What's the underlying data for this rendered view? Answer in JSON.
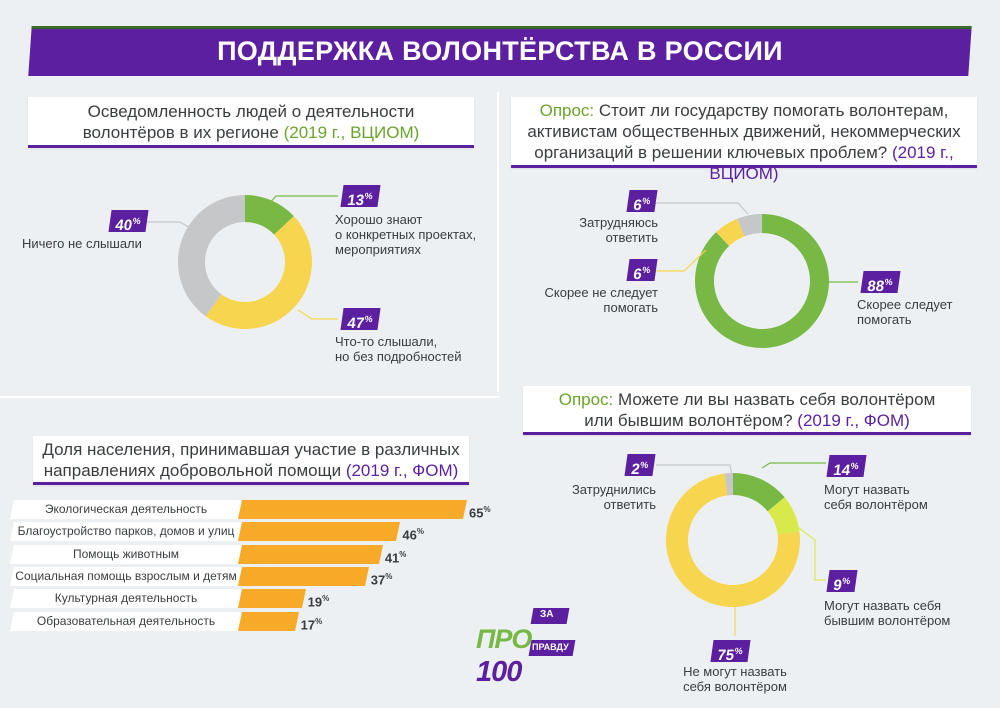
{
  "title": "ПОДДЕРЖКА ВОЛОНТЁРСТВА В РОССИИ",
  "colors": {
    "purple": "#5b1fa0",
    "green": "#78b845",
    "yellow": "#f7d54e",
    "gray": "#c5c7c9",
    "lime": "#d7ea4a",
    "orange": "#f7a928"
  },
  "awareness": {
    "title_line1": "Осведомленность людей о деятельности",
    "title_line2": "волонтёров в их регионе",
    "source": "(2019 г., ВЦИОМ)",
    "chart_data": {
      "type": "pie",
      "title": "Осведомленность людей о деятельности волонтёров в их регионе",
      "slices": [
        {
          "label_line1": "Хорошо знают",
          "label_line2": "о конкретных проектах,",
          "label_line3": "мероприятиях",
          "value": 13,
          "pct": "13",
          "color": "#78b845"
        },
        {
          "label_line1": "Что-то слышали,",
          "label_line2": "но без подробностей",
          "value": 47,
          "pct": "47",
          "color": "#f7d54e"
        },
        {
          "label_line1": "Ничего не слышали",
          "value": 40,
          "pct": "40",
          "color": "#c5c7c9"
        }
      ]
    }
  },
  "poll1": {
    "prefix": "Опрос:",
    "line1": "Стоит ли государству помогать волонтерам,",
    "line2": "активистам общественных движений, некоммерческих",
    "line3": "организаций в решении ключевых проблем?",
    "source": "(2019 г., ВЦИОМ)",
    "chart_data": {
      "type": "pie",
      "title": "Стоит ли государству помогать волонтерам",
      "slices": [
        {
          "label_line1": "Скорее следует",
          "label_line2": "помогать",
          "value": 88,
          "pct": "88",
          "color": "#78b845"
        },
        {
          "label_line1": "Скорее не следует",
          "label_line2": "помогать",
          "value": 6,
          "pct": "6",
          "color": "#f7d54e"
        },
        {
          "label_line1": "Затрудняюсь",
          "label_line2": "ответить",
          "value": 6,
          "pct": "6",
          "color": "#c5c7c9"
        }
      ]
    }
  },
  "poll2": {
    "prefix": "Опрос:",
    "line1": "Можете ли вы назвать себя волонтёром",
    "line2": "или бывшим волонтёром?",
    "source": "(2019 г., ФОМ)",
    "chart_data": {
      "type": "pie",
      "title": "Можете ли вы назвать себя волонтёром или бывшим волонтёром?",
      "slices": [
        {
          "label_line1": "Могут назвать",
          "label_line2": "себя волонтёром",
          "value": 14,
          "pct": "14",
          "color": "#78b845"
        },
        {
          "label_line1": "Могут назвать себя",
          "label_line2": "бывшим волонтёром",
          "value": 9,
          "pct": "9",
          "color": "#d7ea4a"
        },
        {
          "label_line1": "Не могут назвать",
          "label_line2": "себя волонтёром",
          "value": 75,
          "pct": "75",
          "color": "#f7d54e"
        },
        {
          "label_line1": "Затруднились",
          "label_line2": "ответить",
          "value": 2,
          "pct": "2",
          "color": "#c5c7c9"
        }
      ]
    }
  },
  "participation": {
    "title_line1": "Доля населения, принимавшая участие в различных",
    "title_line2": "направлениях добровольной помощи",
    "source": "(2019 г., ФОМ)",
    "chart_data": {
      "type": "bar",
      "orientation": "horizontal",
      "title": "Доля населения, принимавшая участие в различных направлениях добровольной помощи",
      "categories": [
        "Экологическая деятельность",
        "Благоустройство парков, домов и улиц",
        "Помощь животным",
        "Социальная помощь взрослым и детям",
        "Культурная деятельность",
        "Образовательная деятельность"
      ],
      "values": [
        65,
        46,
        41,
        37,
        19,
        17
      ],
      "labels": [
        "65",
        "46",
        "41",
        "37",
        "19",
        "17"
      ],
      "unit": "%",
      "xlim": [
        0,
        100
      ]
    }
  },
  "logo": {
    "pro": "ПРО",
    "num": "100",
    "za": "ЗА",
    "pravdu": "ПРАВДУ"
  }
}
